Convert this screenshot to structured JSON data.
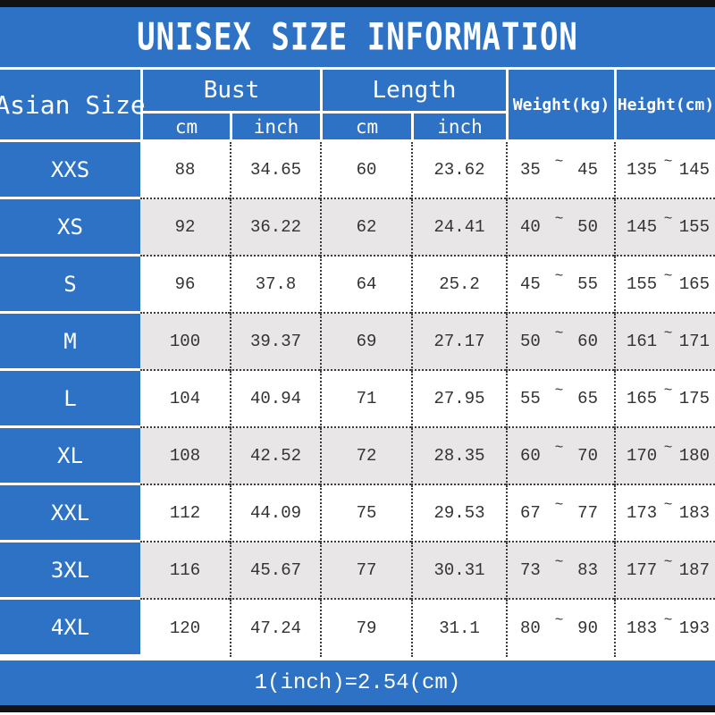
{
  "title": "UNISEX SIZE INFORMATION",
  "footer": "1(inch)=2.54(cm)",
  "tilde": "~",
  "colors": {
    "blue": "#2d72c4",
    "row_alt": "#e8e6e6",
    "dot": "#3c3c3c",
    "bar": "#121212"
  },
  "header": {
    "size_col": "Asian Size",
    "bust": "Bust",
    "length": "Length",
    "weight": "Weight(kg)",
    "height": "Height(cm)",
    "cm": "cm",
    "inch": "inch"
  },
  "rows": [
    {
      "size": "XXS",
      "bust_cm": "88",
      "bust_inch": "34.65",
      "length_cm": "60",
      "length_inch": "23.62",
      "weight_min": "35",
      "weight_max": "45",
      "height_min": "135",
      "height_max": "145"
    },
    {
      "size": "XS",
      "bust_cm": "92",
      "bust_inch": "36.22",
      "length_cm": "62",
      "length_inch": "24.41",
      "weight_min": "40",
      "weight_max": "50",
      "height_min": "145",
      "height_max": "155"
    },
    {
      "size": "S",
      "bust_cm": "96",
      "bust_inch": "37.8",
      "length_cm": "64",
      "length_inch": "25.2",
      "weight_min": "45",
      "weight_max": "55",
      "height_min": "155",
      "height_max": "165"
    },
    {
      "size": "M",
      "bust_cm": "100",
      "bust_inch": "39.37",
      "length_cm": "69",
      "length_inch": "27.17",
      "weight_min": "50",
      "weight_max": "60",
      "height_min": "161",
      "height_max": "171"
    },
    {
      "size": "L",
      "bust_cm": "104",
      "bust_inch": "40.94",
      "length_cm": "71",
      "length_inch": "27.95",
      "weight_min": "55",
      "weight_max": "65",
      "height_min": "165",
      "height_max": "175"
    },
    {
      "size": "XL",
      "bust_cm": "108",
      "bust_inch": "42.52",
      "length_cm": "72",
      "length_inch": "28.35",
      "weight_min": "60",
      "weight_max": "70",
      "height_min": "170",
      "height_max": "180"
    },
    {
      "size": "XXL",
      "bust_cm": "112",
      "bust_inch": "44.09",
      "length_cm": "75",
      "length_inch": "29.53",
      "weight_min": "67",
      "weight_max": "77",
      "height_min": "173",
      "height_max": "183"
    },
    {
      "size": "3XL",
      "bust_cm": "116",
      "bust_inch": "45.67",
      "length_cm": "77",
      "length_inch": "30.31",
      "weight_min": "73",
      "weight_max": "83",
      "height_min": "177",
      "height_max": "187"
    },
    {
      "size": "4XL",
      "bust_cm": "120",
      "bust_inch": "47.24",
      "length_cm": "79",
      "length_inch": "31.1",
      "weight_min": "80",
      "weight_max": "90",
      "height_min": "183",
      "height_max": "193"
    }
  ]
}
